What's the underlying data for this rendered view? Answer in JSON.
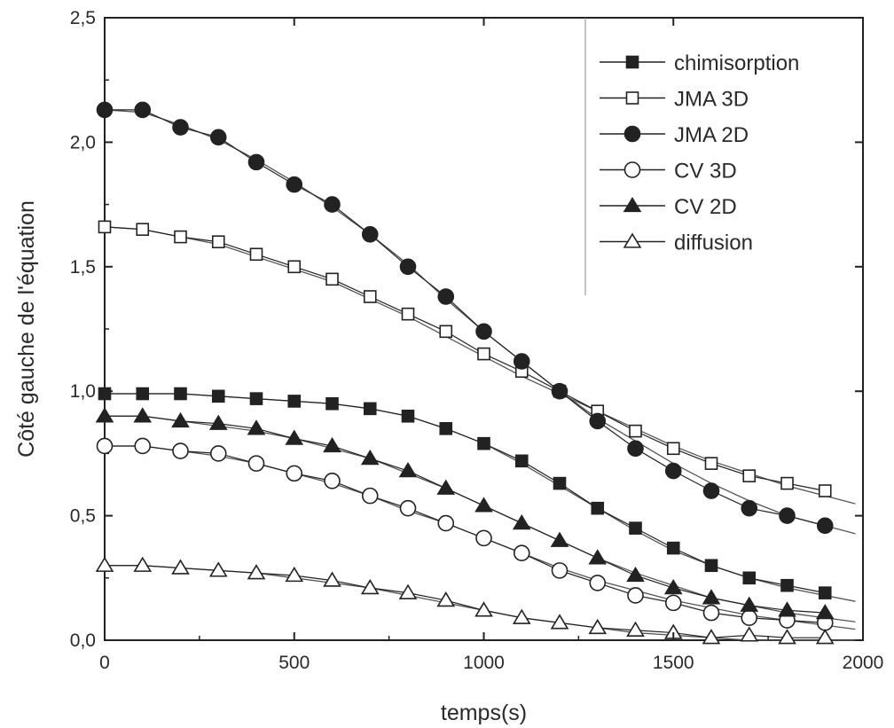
{
  "chart_data": {
    "type": "scatter",
    "title": "",
    "xlabel": "temps(s)",
    "ylabel": "Côté gauche de l'équation",
    "xlim": [
      0,
      2000
    ],
    "ylim": [
      0,
      2.5
    ],
    "x_ticks": [
      "0",
      "500",
      "1000",
      "1500",
      "2000"
    ],
    "y_ticks": [
      "0,0",
      "0,5",
      "1,0",
      "1,5",
      "2,0",
      "2,5"
    ],
    "grid": false,
    "legend_position": "top-right",
    "x": [
      0,
      100,
      200,
      300,
      400,
      500,
      600,
      700,
      800,
      900,
      1000,
      1100,
      1200,
      1300,
      1400,
      1500,
      1600,
      1700,
      1800,
      1900
    ],
    "series": [
      {
        "name": "chimisorption",
        "marker": "square-filled",
        "values": [
          0.99,
          0.99,
          0.99,
          0.98,
          0.97,
          0.96,
          0.95,
          0.93,
          0.9,
          0.85,
          0.79,
          0.72,
          0.63,
          0.53,
          0.45,
          0.37,
          0.3,
          0.25,
          0.22,
          0.19
        ],
        "fit": [
          0.99,
          0.99,
          0.99,
          0.98,
          0.97,
          0.96,
          0.95,
          0.93,
          0.9,
          0.85,
          0.79,
          0.71,
          0.62,
          0.53,
          0.44,
          0.36,
          0.3,
          0.25,
          0.21,
          0.18
        ]
      },
      {
        "name": "JMA 3D",
        "marker": "square-open",
        "values": [
          1.66,
          1.65,
          1.62,
          1.6,
          1.55,
          1.5,
          1.45,
          1.38,
          1.31,
          1.24,
          1.15,
          1.08,
          1.0,
          0.92,
          0.84,
          0.77,
          0.71,
          0.66,
          0.63,
          0.6
        ],
        "fit": [
          1.66,
          1.65,
          1.62,
          1.59,
          1.54,
          1.49,
          1.44,
          1.37,
          1.3,
          1.22,
          1.14,
          1.06,
          0.99,
          0.92,
          0.85,
          0.78,
          0.72,
          0.67,
          0.62,
          0.58
        ]
      },
      {
        "name": "JMA 2D",
        "marker": "circle-filled",
        "values": [
          2.13,
          2.13,
          2.06,
          2.02,
          1.92,
          1.83,
          1.75,
          1.63,
          1.5,
          1.38,
          1.24,
          1.12,
          1.0,
          0.88,
          0.77,
          0.68,
          0.6,
          0.53,
          0.5,
          0.46
        ],
        "fit": [
          2.13,
          2.12,
          2.07,
          2.01,
          1.93,
          1.84,
          1.74,
          1.63,
          1.51,
          1.37,
          1.24,
          1.12,
          1.0,
          0.89,
          0.8,
          0.71,
          0.63,
          0.56,
          0.5,
          0.46
        ]
      },
      {
        "name": "CV 3D",
        "marker": "circle-open",
        "values": [
          0.78,
          0.78,
          0.76,
          0.75,
          0.71,
          0.67,
          0.64,
          0.58,
          0.53,
          0.47,
          0.41,
          0.35,
          0.28,
          0.23,
          0.18,
          0.15,
          0.11,
          0.09,
          0.08,
          0.07
        ],
        "fit": [
          0.78,
          0.78,
          0.76,
          0.74,
          0.71,
          0.67,
          0.63,
          0.58,
          0.52,
          0.47,
          0.41,
          0.35,
          0.29,
          0.24,
          0.2,
          0.16,
          0.13,
          0.1,
          0.08,
          0.06
        ]
      },
      {
        "name": "CV 2D",
        "marker": "triangle-filled",
        "values": [
          0.9,
          0.9,
          0.88,
          0.87,
          0.85,
          0.81,
          0.78,
          0.73,
          0.68,
          0.61,
          0.54,
          0.47,
          0.4,
          0.33,
          0.26,
          0.21,
          0.17,
          0.14,
          0.12,
          0.11
        ],
        "fit": [
          0.9,
          0.9,
          0.88,
          0.86,
          0.84,
          0.81,
          0.77,
          0.73,
          0.67,
          0.61,
          0.54,
          0.47,
          0.4,
          0.33,
          0.27,
          0.22,
          0.17,
          0.14,
          0.11,
          0.09
        ]
      },
      {
        "name": "diffusion",
        "marker": "triangle-open",
        "values": [
          0.3,
          0.3,
          0.29,
          0.28,
          0.27,
          0.26,
          0.24,
          0.21,
          0.19,
          0.16,
          0.12,
          0.09,
          0.07,
          0.05,
          0.04,
          0.03,
          0.01,
          0.02,
          0.01,
          0.01
        ],
        "fit": [
          0.3,
          0.3,
          0.29,
          0.28,
          0.27,
          0.25,
          0.23,
          0.21,
          0.18,
          0.15,
          0.12,
          0.09,
          0.07,
          0.05,
          0.03,
          0.02,
          0.01,
          0.0,
          0.0,
          0.0
        ]
      }
    ],
    "line_color": "#222222",
    "fit_color": "#555555",
    "background": "#ffffff"
  }
}
